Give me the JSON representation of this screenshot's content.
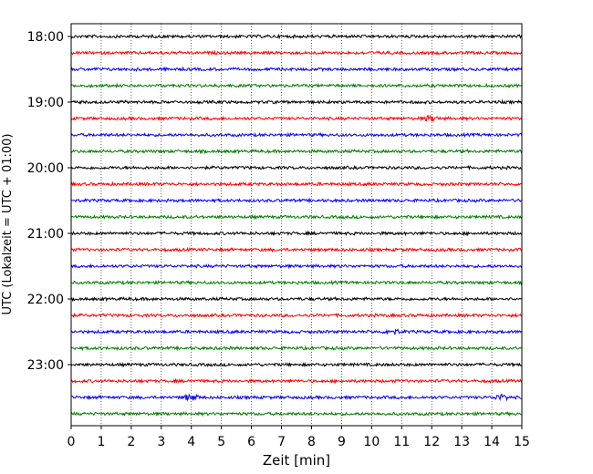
{
  "chart_data": {
    "type": "line",
    "subtype": "helicorder-seismogram",
    "xlabel": "Zeit  [min]",
    "ylabel": "UTC (Lokalzeit = UTC + 01:00)",
    "xlim": [
      0,
      15
    ],
    "x_ticks": [
      0,
      1,
      2,
      3,
      4,
      5,
      6,
      7,
      8,
      9,
      10,
      11,
      12,
      13,
      14,
      15
    ],
    "y_tick_labels": [
      "18:00",
      "19:00",
      "20:00",
      "21:00",
      "22:00",
      "23:00"
    ],
    "trace_start_times": [
      "18:00",
      "18:15",
      "18:30",
      "18:45",
      "19:00",
      "19:15",
      "19:30",
      "19:45",
      "20:00",
      "20:15",
      "20:30",
      "20:45",
      "21:00",
      "21:15",
      "21:30",
      "21:45",
      "22:00",
      "22:15",
      "22:30",
      "22:45",
      "23:00",
      "23:15",
      "23:30",
      "23:45"
    ],
    "trace_color_cycle": [
      "#000000",
      "#ff0000",
      "#0000ff",
      "#008000"
    ],
    "grid": "vertical dotted lines at each minute",
    "amplitude": "low-level background noise on all traces, slightly larger bursts near 12 min (19:15 trace), 10.7 min (22:30 trace) and 4 min (23:30 trace)"
  }
}
